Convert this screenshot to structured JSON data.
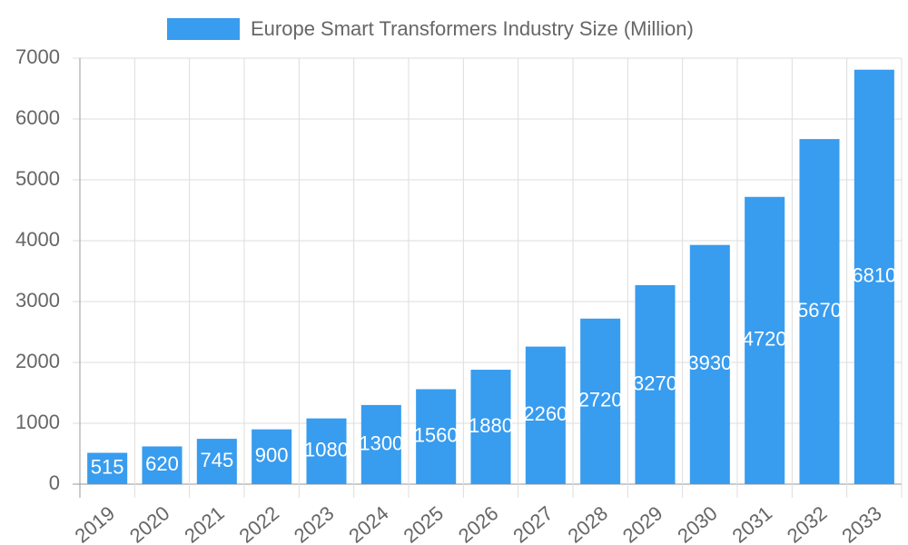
{
  "chart_data": {
    "type": "bar",
    "categories": [
      "2019",
      "2020",
      "2021",
      "2022",
      "2023",
      "2024",
      "2025",
      "2026",
      "2027",
      "2028",
      "2029",
      "2030",
      "2031",
      "2032",
      "2033"
    ],
    "series": [
      {
        "name": "Europe Smart Transformers Industry Size (Million)",
        "color": "#389cef",
        "values": [
          515,
          620,
          745,
          900,
          1080,
          1300,
          1560,
          1880,
          2260,
          2720,
          3270,
          3930,
          4720,
          5670,
          6810
        ]
      }
    ],
    "ylim": [
      0,
      7000
    ],
    "yticks": [
      0,
      1000,
      2000,
      3000,
      4000,
      5000,
      6000,
      7000
    ],
    "grid": true,
    "legend": "top",
    "data_labels": true
  }
}
